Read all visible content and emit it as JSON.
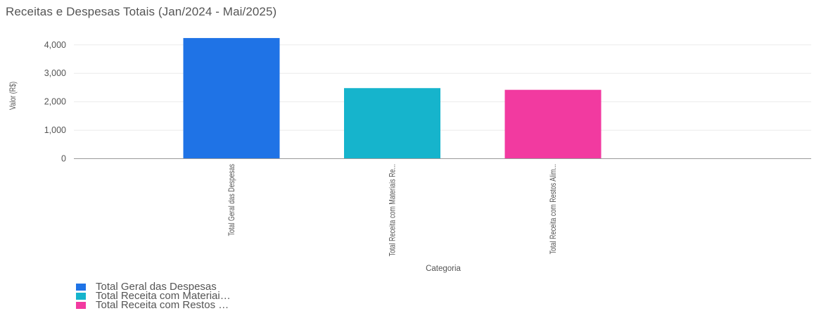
{
  "chart_title": "Receitas e Despesas Totais (Jan/2024 - Mai/2025)",
  "chart_data": {
    "type": "bar",
    "title": "Receitas e Despesas Totais (Jan/2024 - Mai/2025)",
    "xlabel": "Categoria",
    "ylabel": "Valor (R$)",
    "ylim": [
      0,
      4400
    ],
    "yticks": [
      0,
      1000,
      2000,
      3000,
      4000
    ],
    "ytick_labels": [
      "0",
      "1,000",
      "2,000",
      "3,000",
      "4,000"
    ],
    "categories": [
      "Total Geral das Despesas",
      "Total Receita com Materiais Re...",
      "Total Receita com Restos Alim..."
    ],
    "values": [
      4240,
      2480,
      2420
    ],
    "colors": [
      "#1f73e6",
      "#16b4cc",
      "#f23aa0"
    ],
    "grid": true,
    "legend_position": "bottom-left"
  },
  "legend": {
    "items": [
      {
        "label": "Total Geral das Despesas",
        "color": "#1f73e6"
      },
      {
        "label": "Total Receita com Materiai…",
        "color": "#16b4cc"
      },
      {
        "label": "Total Receita com Restos …",
        "color": "#f23aa0"
      }
    ]
  }
}
